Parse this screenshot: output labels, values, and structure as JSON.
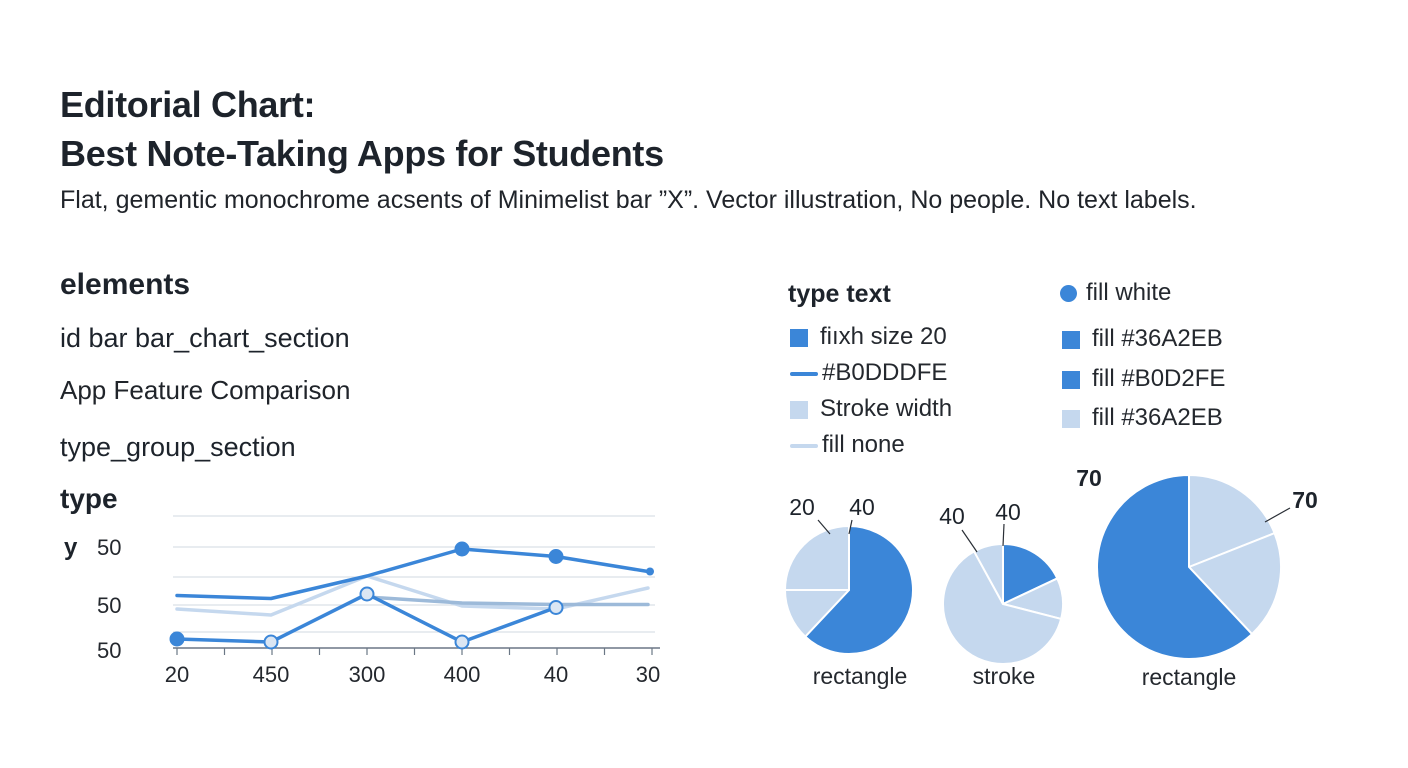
{
  "title_line1": "Editorial Chart:",
  "title_line2": "Best Note-Taking Apps for Students",
  "subtitle": "Flat, gementic monochrome acsents of Minimelist bar ”X”. Vector illustration, No people. No text labels.",
  "left_labels": {
    "elements": "elements",
    "id_bar": "id bar bar_chart_section",
    "app_feature": "App Feature Comparison",
    "type_group": "type_group_section",
    "type": "type",
    "y": "y"
  },
  "legend": {
    "heading": "type text",
    "fill_white": "fill white",
    "col1": [
      {
        "label": "fiıxh size 20",
        "kind": "square",
        "color": "#3b86d8"
      },
      {
        "label": "#B0DDDFE",
        "kind": "line",
        "color": "#3b86d8"
      },
      {
        "label": "Stroke width",
        "kind": "square",
        "color": "#c5d8ee"
      },
      {
        "label": "fill none",
        "kind": "line",
        "color": "#c5d8ee"
      }
    ],
    "col2": [
      {
        "label": "fill #36A2EB",
        "kind": "square",
        "color": "#3b86d8"
      },
      {
        "label": "fill #B0D2FE",
        "kind": "square",
        "color": "#3b86d8"
      },
      {
        "label": "fill #36A2EB",
        "kind": "square",
        "color": "#c5d8ee"
      }
    ]
  },
  "colors": {
    "primary": "#3b86d8",
    "light": "#c5d8ee",
    "grid": "#d9e0e8",
    "text": "#1d232b"
  },
  "chart_data": [
    {
      "type": "line",
      "x": [
        "20",
        "450",
        "300",
        "400",
        "40",
        "30"
      ],
      "y_tick_labels": [
        "50",
        "50",
        "50"
      ],
      "grid": true,
      "series": [
        {
          "color": "#3b86d8",
          "values": [
            46.5,
            47.5,
            40,
            31,
            33.5,
            38.5
          ],
          "markers": [
            false,
            false,
            false,
            true,
            true,
            false
          ]
        },
        {
          "color": "#3b86d8",
          "values": [
            61,
            62,
            46,
            62,
            50.5,
            null
          ],
          "markers": [
            true,
            true,
            true,
            true,
            true,
            false
          ]
        },
        {
          "color": "#c5d8ee",
          "values": [
            51,
            53,
            40,
            50,
            51,
            44
          ],
          "markers": [
            false,
            false,
            false,
            false,
            false,
            false
          ]
        },
        {
          "color": "#9dbad9",
          "values": [
            null,
            null,
            47,
            49,
            49.5,
            49.5
          ],
          "markers": [
            false,
            false,
            false,
            false,
            false,
            false
          ]
        }
      ]
    },
    {
      "type": "pie",
      "label": "rectangle",
      "callouts": [
        "20",
        "40"
      ],
      "slices": [
        {
          "value": 62,
          "color": "#3b86d8"
        },
        {
          "value": 13,
          "color": "#c5d8ee"
        },
        {
          "value": 25,
          "color": "#c5d8ee"
        }
      ]
    },
    {
      "type": "pie",
      "label": "stroke",
      "callouts": [
        "40",
        "40"
      ],
      "slices": [
        {
          "value": 18,
          "color": "#3b86d8"
        },
        {
          "value": 11,
          "color": "#c5d8ee"
        },
        {
          "value": 63,
          "color": "#c5d8ee"
        },
        {
          "value": 8,
          "color": "#c5d8ee"
        }
      ]
    },
    {
      "type": "pie",
      "label": "rectangle",
      "callouts": [
        "70",
        "70"
      ],
      "slices": [
        {
          "value": 19,
          "color": "#c5d8ee"
        },
        {
          "value": 19,
          "color": "#c5d8ee"
        },
        {
          "value": 62,
          "color": "#3b86d8"
        }
      ]
    }
  ]
}
